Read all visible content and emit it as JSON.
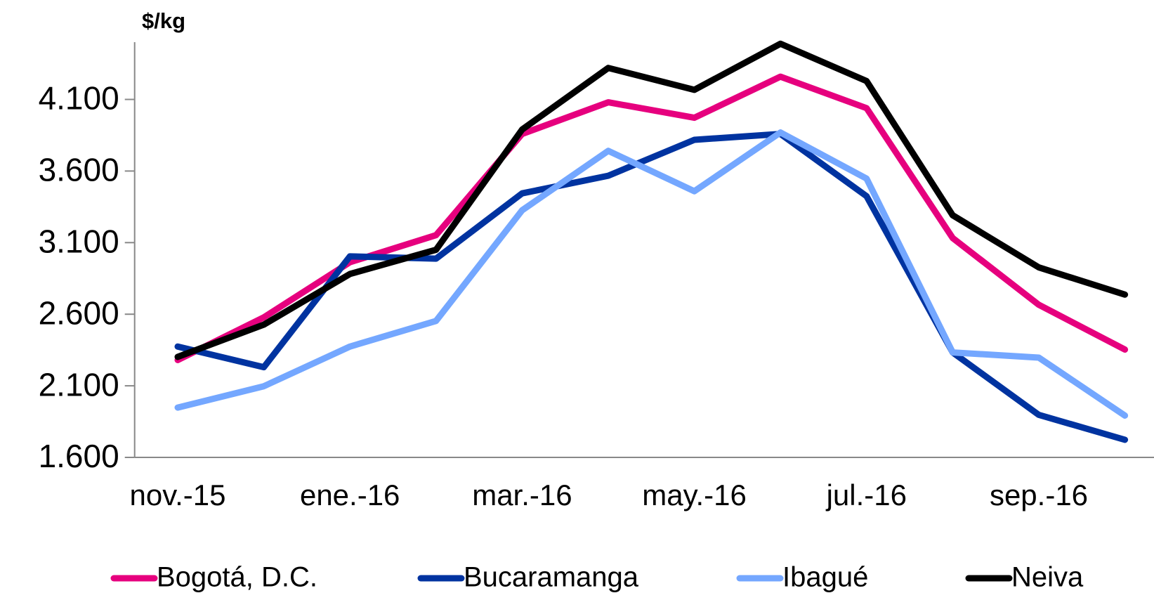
{
  "chart_data": {
    "type": "line",
    "y_label": "$/kg",
    "categories": [
      "nov.-15",
      null,
      "ene.-16",
      null,
      "mar.-16",
      null,
      "may.-16",
      null,
      "jul.-16",
      null,
      "sep.-16",
      null
    ],
    "series": [
      {
        "name": "Bogotá, D.C.",
        "color": "#e6007e",
        "values": [
          2280,
          2578,
          2963,
          3152,
          3859,
          4080,
          3972,
          4259,
          4039,
          3132,
          2666,
          2353
        ]
      },
      {
        "name": "Bucaramanga",
        "color": "#0033a0",
        "values": [
          2374,
          2230,
          3004,
          2988,
          3444,
          3567,
          3818,
          3859,
          3424,
          2333,
          1897,
          1723
        ]
      },
      {
        "name": "Ibagué",
        "color": "#74a7ff",
        "values": [
          1948,
          2097,
          2374,
          2553,
          3326,
          3741,
          3459,
          3869,
          3547,
          2333,
          2297,
          1892
        ]
      },
      {
        "name": "Neiva",
        "color": "#000000",
        "values": [
          2302,
          2527,
          2881,
          3050,
          3890,
          4320,
          4167,
          4489,
          4228,
          3291,
          2927,
          2737
        ]
      }
    ],
    "ylim": [
      1600,
      4500
    ],
    "yticks": [
      {
        "value": 1600,
        "label": "1.600"
      },
      {
        "value": 2100,
        "label": "2.100"
      },
      {
        "value": 2600,
        "label": "2.600"
      },
      {
        "value": 3100,
        "label": "3.100"
      },
      {
        "value": 3600,
        "label": "3.600"
      },
      {
        "value": 4100,
        "label": "4.100"
      }
    ],
    "legend": "bottom"
  }
}
